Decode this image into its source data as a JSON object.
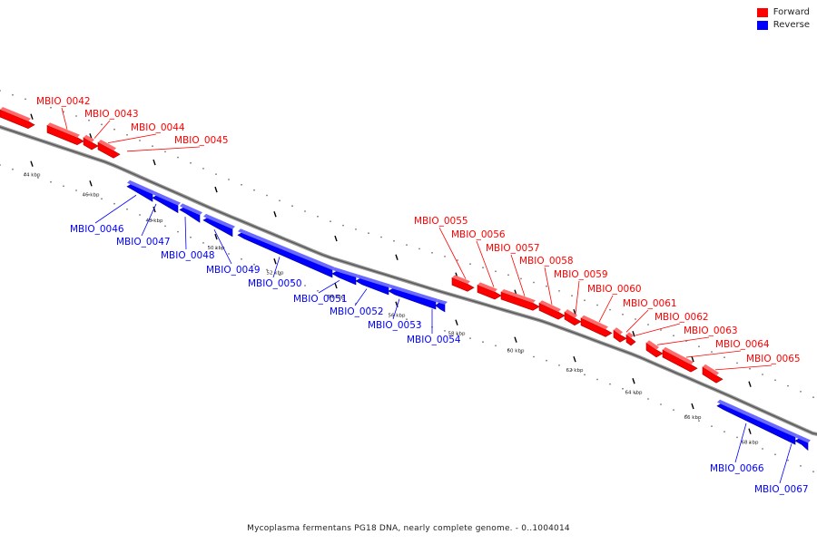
{
  "legend": {
    "forward_label": "Forward",
    "reverse_label": "Reverse",
    "forward_color": "#ff0000",
    "reverse_color": "#0000ff"
  },
  "caption": "Mycoplasma fermentans PG18 DNA, nearly complete genome. - 0..1004014",
  "ticks": [
    "44 kbp",
    "46 kbp",
    "48 kbp",
    "50 kbp",
    "52 kbp",
    "54 kbp",
    "56 kbp",
    "58 kbp",
    "60 kbp",
    "62 kbp",
    "64 kbp",
    "66 kbp",
    "68 kbp"
  ],
  "genes": [
    {
      "label": "MBIO_0042",
      "strand": "forward"
    },
    {
      "label": "MBIO_0043",
      "strand": "forward"
    },
    {
      "label": "MBIO_0044",
      "strand": "forward"
    },
    {
      "label": "MBIO_0045",
      "strand": "forward"
    },
    {
      "label": "MBIO_0046",
      "strand": "reverse"
    },
    {
      "label": "MBIO_0047",
      "strand": "reverse"
    },
    {
      "label": "MBIO_0048",
      "strand": "reverse"
    },
    {
      "label": "MBIO_0049",
      "strand": "reverse"
    },
    {
      "label": "MBIO_0050",
      "strand": "reverse"
    },
    {
      "label": "MBIO_0051",
      "strand": "reverse"
    },
    {
      "label": "MBIO_0052",
      "strand": "reverse"
    },
    {
      "label": "MBIO_0053",
      "strand": "reverse"
    },
    {
      "label": "MBIO_0054",
      "strand": "reverse"
    },
    {
      "label": "MBIO_0055",
      "strand": "forward"
    },
    {
      "label": "MBIO_0056",
      "strand": "forward"
    },
    {
      "label": "MBIO_0057",
      "strand": "forward"
    },
    {
      "label": "MBIO_0058",
      "strand": "forward"
    },
    {
      "label": "MBIO_0059",
      "strand": "forward"
    },
    {
      "label": "MBIO_0060",
      "strand": "forward"
    },
    {
      "label": "MBIO_0061",
      "strand": "forward"
    },
    {
      "label": "MBIO_0062",
      "strand": "forward"
    },
    {
      "label": "MBIO_0063",
      "strand": "forward"
    },
    {
      "label": "MBIO_0064",
      "strand": "forward"
    },
    {
      "label": "MBIO_0065",
      "strand": "forward"
    },
    {
      "label": "MBIO_0066",
      "strand": "reverse"
    },
    {
      "label": "MBIO_0067",
      "strand": "reverse"
    }
  ]
}
